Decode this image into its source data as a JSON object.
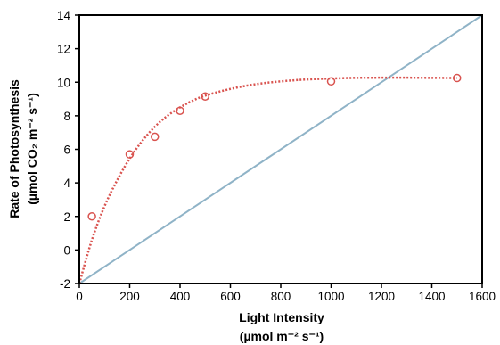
{
  "chart_data": {
    "type": "scatter",
    "xlabel": "Light Intensity",
    "xlabel_units": "(µmol m⁻² s⁻¹)",
    "ylabel": "Rate of Photosynthesis",
    "ylabel_units": "(µmol CO₂ m⁻² s⁻¹)",
    "xlim": [
      0,
      1600
    ],
    "ylim": [
      -2,
      14
    ],
    "xticks": [
      "0",
      "200",
      "400",
      "600",
      "800",
      "1000",
      "1200",
      "1400",
      "1600"
    ],
    "yticks": [
      "-2",
      "0",
      "2",
      "4",
      "6",
      "8",
      "10",
      "12",
      "14"
    ],
    "grid": false,
    "colors": {
      "points": "#d9534f",
      "curve": "#d9534f",
      "line": "#8fb3c7"
    },
    "series": [
      {
        "kind": "points",
        "x": [
          50,
          200,
          300,
          400,
          500,
          1000,
          1500
        ],
        "y": [
          2.0,
          5.7,
          6.75,
          8.3,
          9.15,
          10.05,
          10.25
        ]
      },
      {
        "kind": "fitted-curve",
        "x": [
          0,
          50,
          100,
          150,
          200,
          250,
          300,
          350,
          400,
          450,
          500,
          600,
          700,
          800,
          900,
          1000,
          1100,
          1200,
          1300,
          1400,
          1500
        ],
        "y": [
          -2.0,
          0.6,
          2.6,
          4.15,
          5.45,
          6.5,
          7.35,
          8.0,
          8.5,
          8.9,
          9.2,
          9.6,
          9.88,
          10.05,
          10.16,
          10.22,
          10.26,
          10.27,
          10.27,
          10.26,
          10.25
        ]
      },
      {
        "kind": "line",
        "x": [
          0,
          1600
        ],
        "y": [
          -2,
          14
        ]
      }
    ]
  }
}
